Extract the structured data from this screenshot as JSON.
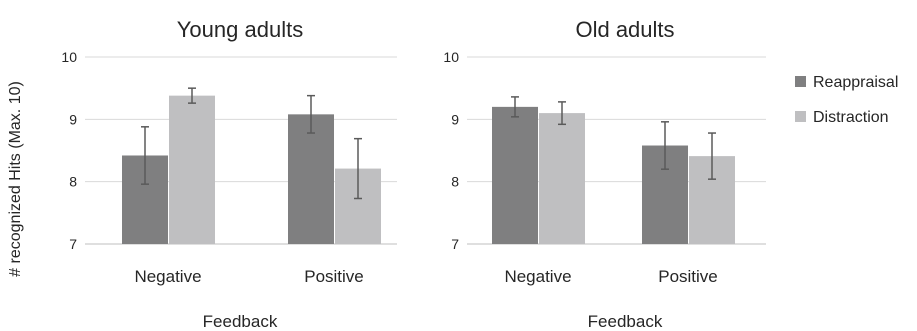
{
  "chart_data": {
    "type": "bar",
    "ylabel": "# recognized Hits (Max. 10)",
    "ylim": [
      7,
      10
    ],
    "yticks": [
      7,
      8,
      9,
      10
    ],
    "grid": true,
    "legend_placement": "right",
    "legend": [
      {
        "name": "Reappraisal",
        "color": "#7f7f80"
      },
      {
        "name": "Distraction",
        "color": "#bfbfc1"
      }
    ],
    "panels": [
      {
        "title": "Young adults",
        "xlabel": "Feedback",
        "categories": [
          "Negative",
          "Positive"
        ],
        "series": [
          {
            "name": "Reappraisal",
            "values": [
              8.42,
              9.08
            ],
            "errors": [
              0.46,
              0.3
            ]
          },
          {
            "name": "Distraction",
            "values": [
              9.38,
              8.21
            ],
            "errors": [
              0.12,
              0.48
            ]
          }
        ]
      },
      {
        "title": "Old adults",
        "xlabel": "Feedback",
        "categories": [
          "Negative",
          "Positive"
        ],
        "series": [
          {
            "name": "Reappraisal",
            "values": [
              9.2,
              8.58
            ],
            "errors": [
              0.16,
              0.38
            ]
          },
          {
            "name": "Distraction",
            "values": [
              9.1,
              8.41
            ],
            "errors": [
              0.18,
              0.37
            ]
          }
        ]
      }
    ]
  }
}
